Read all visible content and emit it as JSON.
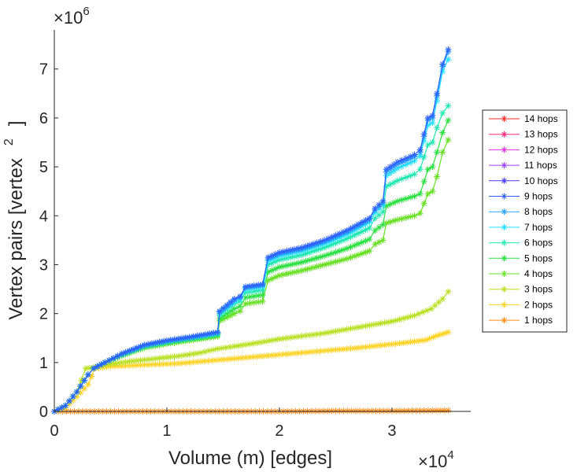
{
  "chart_data": {
    "type": "line",
    "title": "",
    "xlabel": "Volume (m) [edges]",
    "ylabel_main": "Vertex pairs [vertex",
    "ylabel_sup": "2",
    "ylabel_close": "]",
    "x_multiplier": {
      "base": "×10",
      "exp": "4"
    },
    "y_multiplier": {
      "base": "×10",
      "exp": "6"
    },
    "xlim": [
      0,
      3.7
    ],
    "ylim": [
      0,
      7.8
    ],
    "xticks": [
      {
        "value": 0,
        "label": "0"
      },
      {
        "value": 1,
        "label": "1"
      },
      {
        "value": 2,
        "label": "2"
      },
      {
        "value": 3,
        "label": "3"
      }
    ],
    "yticks": [
      {
        "value": 0,
        "label": "0"
      },
      {
        "value": 1,
        "label": "1"
      },
      {
        "value": 2,
        "label": "2"
      },
      {
        "value": 3,
        "label": "3"
      },
      {
        "value": 4,
        "label": "4"
      },
      {
        "value": 5,
        "label": "5"
      },
      {
        "value": 6,
        "label": "6"
      },
      {
        "value": 7,
        "label": "7"
      }
    ],
    "legend_position": "right",
    "series": [
      {
        "name": "14 hops",
        "color": "#ff2a2a",
        "points": []
      },
      {
        "name": "13 hops",
        "color": "#ff2a7f",
        "points": []
      },
      {
        "name": "12 hops",
        "color": "#e033e0",
        "points": []
      },
      {
        "name": "11 hops",
        "color": "#a040ff",
        "points": []
      },
      {
        "name": "10 hops",
        "color": "#4b3dff",
        "points": []
      },
      {
        "name": "9 hops",
        "color": "#2f62ff",
        "points": [
          [
            0,
            0
          ],
          [
            0.1,
            0.12
          ],
          [
            0.2,
            0.4
          ],
          [
            0.3,
            0.75
          ],
          [
            0.35,
            0.88
          ],
          [
            0.45,
            1.0
          ],
          [
            0.6,
            1.18
          ],
          [
            0.8,
            1.36
          ],
          [
            1.0,
            1.45
          ],
          [
            1.2,
            1.52
          ],
          [
            1.45,
            1.62
          ],
          [
            1.47,
            2.05
          ],
          [
            1.6,
            2.3
          ],
          [
            1.65,
            2.35
          ],
          [
            1.7,
            2.55
          ],
          [
            1.85,
            2.6
          ],
          [
            1.9,
            3.15
          ],
          [
            2.0,
            3.25
          ],
          [
            2.2,
            3.35
          ],
          [
            2.4,
            3.5
          ],
          [
            2.6,
            3.7
          ],
          [
            2.8,
            3.95
          ],
          [
            2.85,
            4.15
          ],
          [
            2.92,
            4.3
          ],
          [
            2.95,
            4.95
          ],
          [
            3.05,
            5.1
          ],
          [
            3.2,
            5.25
          ],
          [
            3.25,
            5.35
          ],
          [
            3.32,
            6.0
          ],
          [
            3.36,
            6.05
          ],
          [
            3.4,
            6.5
          ],
          [
            3.45,
            7.1
          ],
          [
            3.5,
            7.4
          ]
        ]
      },
      {
        "name": "8 hops",
        "color": "#2ba4ff",
        "points": [
          [
            0,
            0
          ],
          [
            0.1,
            0.12
          ],
          [
            0.2,
            0.4
          ],
          [
            0.3,
            0.75
          ],
          [
            0.35,
            0.88
          ],
          [
            0.45,
            1.0
          ],
          [
            0.6,
            1.17
          ],
          [
            0.8,
            1.35
          ],
          [
            1.0,
            1.44
          ],
          [
            1.2,
            1.51
          ],
          [
            1.45,
            1.61
          ],
          [
            1.47,
            2.03
          ],
          [
            1.6,
            2.28
          ],
          [
            1.65,
            2.33
          ],
          [
            1.7,
            2.53
          ],
          [
            1.85,
            2.58
          ],
          [
            1.9,
            3.12
          ],
          [
            2.0,
            3.22
          ],
          [
            2.2,
            3.32
          ],
          [
            2.4,
            3.47
          ],
          [
            2.6,
            3.67
          ],
          [
            2.8,
            3.92
          ],
          [
            2.85,
            4.12
          ],
          [
            2.92,
            4.27
          ],
          [
            2.95,
            4.9
          ],
          [
            3.05,
            5.05
          ],
          [
            3.2,
            5.2
          ],
          [
            3.25,
            5.3
          ],
          [
            3.32,
            5.95
          ],
          [
            3.36,
            6.0
          ],
          [
            3.4,
            6.45
          ],
          [
            3.45,
            7.05
          ],
          [
            3.5,
            7.35
          ]
        ]
      },
      {
        "name": "7 hops",
        "color": "#20e0ff",
        "points": [
          [
            0,
            0
          ],
          [
            0.1,
            0.12
          ],
          [
            0.2,
            0.4
          ],
          [
            0.3,
            0.75
          ],
          [
            0.35,
            0.88
          ],
          [
            0.45,
            1.0
          ],
          [
            0.6,
            1.17
          ],
          [
            0.8,
            1.34
          ],
          [
            1.0,
            1.43
          ],
          [
            1.2,
            1.5
          ],
          [
            1.45,
            1.6
          ],
          [
            1.47,
            2.0
          ],
          [
            1.6,
            2.25
          ],
          [
            1.65,
            2.3
          ],
          [
            1.7,
            2.5
          ],
          [
            1.85,
            2.55
          ],
          [
            1.9,
            3.08
          ],
          [
            2.0,
            3.18
          ],
          [
            2.2,
            3.28
          ],
          [
            2.4,
            3.43
          ],
          [
            2.6,
            3.62
          ],
          [
            2.8,
            3.87
          ],
          [
            2.85,
            4.07
          ],
          [
            2.92,
            4.22
          ],
          [
            2.95,
            4.82
          ],
          [
            3.05,
            4.97
          ],
          [
            3.2,
            5.12
          ],
          [
            3.25,
            5.22
          ],
          [
            3.32,
            5.85
          ],
          [
            3.36,
            5.9
          ],
          [
            3.4,
            6.35
          ],
          [
            3.45,
            6.95
          ],
          [
            3.5,
            7.2
          ]
        ]
      },
      {
        "name": "6 hops",
        "color": "#20e8b0",
        "points": [
          [
            0,
            0
          ],
          [
            0.1,
            0.12
          ],
          [
            0.2,
            0.4
          ],
          [
            0.3,
            0.75
          ],
          [
            0.35,
            0.88
          ],
          [
            0.45,
            1.0
          ],
          [
            0.6,
            1.16
          ],
          [
            0.8,
            1.33
          ],
          [
            1.0,
            1.42
          ],
          [
            1.2,
            1.49
          ],
          [
            1.45,
            1.58
          ],
          [
            1.47,
            1.97
          ],
          [
            1.6,
            2.2
          ],
          [
            1.65,
            2.25
          ],
          [
            1.7,
            2.43
          ],
          [
            1.85,
            2.48
          ],
          [
            1.9,
            3.0
          ],
          [
            2.0,
            3.1
          ],
          [
            2.2,
            3.2
          ],
          [
            2.4,
            3.35
          ],
          [
            2.6,
            3.53
          ],
          [
            2.8,
            3.75
          ],
          [
            2.85,
            3.95
          ],
          [
            2.92,
            4.08
          ],
          [
            2.95,
            4.6
          ],
          [
            3.05,
            4.72
          ],
          [
            3.2,
            4.85
          ],
          [
            3.25,
            4.95
          ],
          [
            3.32,
            5.45
          ],
          [
            3.36,
            5.5
          ],
          [
            3.4,
            5.8
          ],
          [
            3.45,
            6.1
          ],
          [
            3.5,
            6.25
          ]
        ]
      },
      {
        "name": "5 hops",
        "color": "#2ae040",
        "points": [
          [
            0,
            0
          ],
          [
            0.1,
            0.12
          ],
          [
            0.2,
            0.4
          ],
          [
            0.3,
            0.75
          ],
          [
            0.35,
            0.88
          ],
          [
            0.45,
            1.0
          ],
          [
            0.6,
            1.15
          ],
          [
            0.8,
            1.32
          ],
          [
            1.0,
            1.4
          ],
          [
            1.2,
            1.47
          ],
          [
            1.45,
            1.56
          ],
          [
            1.47,
            1.9
          ],
          [
            1.6,
            2.1
          ],
          [
            1.65,
            2.15
          ],
          [
            1.7,
            2.33
          ],
          [
            1.85,
            2.38
          ],
          [
            1.9,
            2.85
          ],
          [
            2.0,
            2.95
          ],
          [
            2.2,
            3.05
          ],
          [
            2.4,
            3.18
          ],
          [
            2.6,
            3.33
          ],
          [
            2.8,
            3.52
          ],
          [
            2.85,
            3.7
          ],
          [
            2.92,
            3.82
          ],
          [
            2.95,
            4.2
          ],
          [
            3.05,
            4.3
          ],
          [
            3.2,
            4.4
          ],
          [
            3.25,
            4.45
          ],
          [
            3.32,
            4.95
          ],
          [
            3.36,
            5.0
          ],
          [
            3.4,
            5.3
          ],
          [
            3.45,
            5.7
          ],
          [
            3.5,
            5.95
          ]
        ]
      },
      {
        "name": "4 hops",
        "color": "#66e020",
        "points": [
          [
            0,
            0
          ],
          [
            0.1,
            0.12
          ],
          [
            0.2,
            0.4
          ],
          [
            0.3,
            0.75
          ],
          [
            0.35,
            0.88
          ],
          [
            0.45,
            1.0
          ],
          [
            0.6,
            1.14
          ],
          [
            0.8,
            1.3
          ],
          [
            1.0,
            1.38
          ],
          [
            1.2,
            1.45
          ],
          [
            1.45,
            1.53
          ],
          [
            1.47,
            1.85
          ],
          [
            1.6,
            2.0
          ],
          [
            1.65,
            2.05
          ],
          [
            1.7,
            2.2
          ],
          [
            1.85,
            2.25
          ],
          [
            1.9,
            2.68
          ],
          [
            2.0,
            2.78
          ],
          [
            2.2,
            2.88
          ],
          [
            2.4,
            3.0
          ],
          [
            2.6,
            3.12
          ],
          [
            2.8,
            3.28
          ],
          [
            2.85,
            3.42
          ],
          [
            2.92,
            3.5
          ],
          [
            2.95,
            3.85
          ],
          [
            3.05,
            3.92
          ],
          [
            3.2,
            4.0
          ],
          [
            3.25,
            4.05
          ],
          [
            3.32,
            4.45
          ],
          [
            3.36,
            4.5
          ],
          [
            3.4,
            4.8
          ],
          [
            3.45,
            5.3
          ],
          [
            3.5,
            5.55
          ]
        ]
      },
      {
        "name": "3 hops",
        "color": "#b8e020",
        "points": [
          [
            0,
            0
          ],
          [
            0.1,
            0.12
          ],
          [
            0.2,
            0.4
          ],
          [
            0.28,
            0.88
          ],
          [
            0.35,
            0.9
          ],
          [
            0.5,
            0.97
          ],
          [
            0.7,
            1.03
          ],
          [
            0.9,
            1.08
          ],
          [
            1.1,
            1.13
          ],
          [
            1.3,
            1.2
          ],
          [
            1.45,
            1.28
          ],
          [
            1.6,
            1.33
          ],
          [
            1.8,
            1.4
          ],
          [
            2.0,
            1.48
          ],
          [
            2.2,
            1.54
          ],
          [
            2.4,
            1.6
          ],
          [
            2.6,
            1.68
          ],
          [
            2.8,
            1.76
          ],
          [
            3.0,
            1.84
          ],
          [
            3.2,
            1.96
          ],
          [
            3.35,
            2.1
          ],
          [
            3.45,
            2.3
          ],
          [
            3.5,
            2.45
          ]
        ]
      },
      {
        "name": "2 hops",
        "color": "#ffd21f",
        "points": [
          [
            0,
            0
          ],
          [
            0.1,
            0.08
          ],
          [
            0.2,
            0.3
          ],
          [
            0.3,
            0.55
          ],
          [
            0.36,
            0.88
          ],
          [
            0.5,
            0.92
          ],
          [
            0.7,
            0.94
          ],
          [
            0.9,
            0.96
          ],
          [
            1.1,
            0.98
          ],
          [
            1.3,
            1.02
          ],
          [
            1.5,
            1.06
          ],
          [
            1.7,
            1.1
          ],
          [
            1.9,
            1.14
          ],
          [
            2.1,
            1.18
          ],
          [
            2.3,
            1.22
          ],
          [
            2.5,
            1.26
          ],
          [
            2.7,
            1.3
          ],
          [
            2.9,
            1.35
          ],
          [
            3.1,
            1.4
          ],
          [
            3.3,
            1.46
          ],
          [
            3.4,
            1.55
          ],
          [
            3.5,
            1.62
          ]
        ]
      },
      {
        "name": "1 hops",
        "color": "#ff8c1a",
        "points": [
          [
            0,
            0
          ],
          [
            0.5,
            0.0
          ],
          [
            1.0,
            0.0
          ],
          [
            1.5,
            0.0
          ],
          [
            2.0,
            0.0
          ],
          [
            2.5,
            0.01
          ],
          [
            3.0,
            0.01
          ],
          [
            3.5,
            0.02
          ]
        ]
      }
    ]
  }
}
